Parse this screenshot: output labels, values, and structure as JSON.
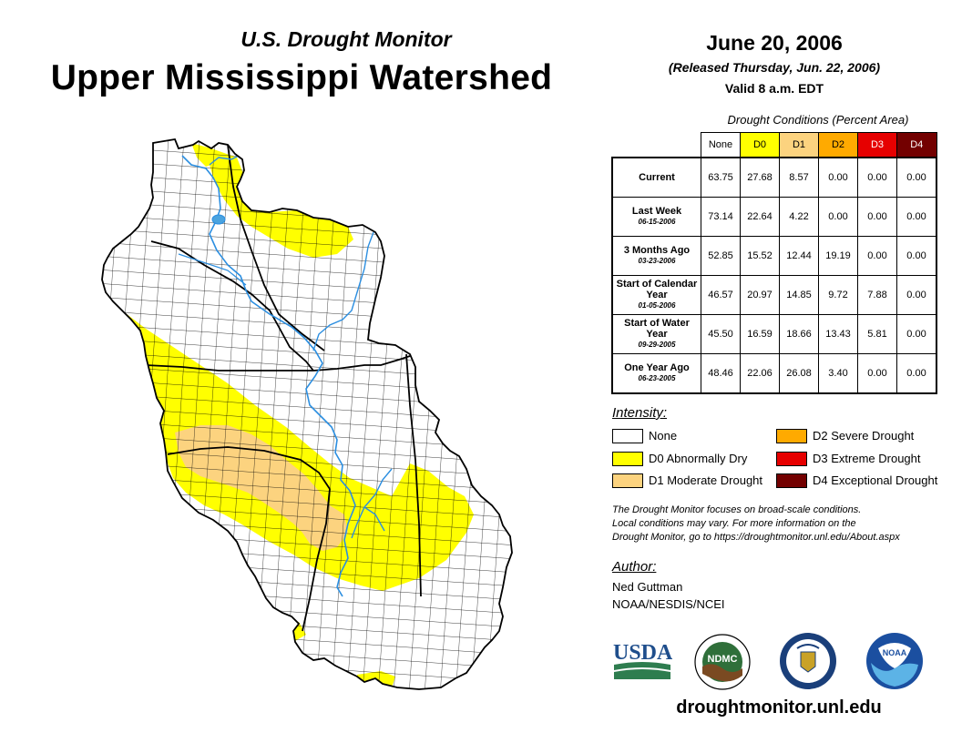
{
  "header": {
    "brand": "U.S. Drought Monitor",
    "title": "Upper Mississippi Watershed",
    "date": "June 20, 2006",
    "released": "(Released Thursday, Jun. 22, 2006)",
    "valid": "Valid 8 a.m. EDT"
  },
  "table": {
    "caption": "Drought Conditions (Percent Area)",
    "columns": [
      {
        "label": "None",
        "color": "#ffffff",
        "text_color": "#000000"
      },
      {
        "label": "D0",
        "color": "#ffff00",
        "text_color": "#000000"
      },
      {
        "label": "D1",
        "color": "#fcd37f",
        "text_color": "#000000"
      },
      {
        "label": "D2",
        "color": "#ffaa00",
        "text_color": "#000000"
      },
      {
        "label": "D3",
        "color": "#e60000",
        "text_color": "#ffffff"
      },
      {
        "label": "D4",
        "color": "#730000",
        "text_color": "#ffffff"
      }
    ],
    "rows": [
      {
        "label": "Current",
        "date": "",
        "values": [
          "63.75",
          "27.68",
          "8.57",
          "0.00",
          "0.00",
          "0.00"
        ]
      },
      {
        "label": "Last Week",
        "date": "06-15-2006",
        "values": [
          "73.14",
          "22.64",
          "4.22",
          "0.00",
          "0.00",
          "0.00"
        ]
      },
      {
        "label": "3 Months Ago",
        "date": "03-23-2006",
        "values": [
          "52.85",
          "15.52",
          "12.44",
          "19.19",
          "0.00",
          "0.00"
        ]
      },
      {
        "label": "Start of Calendar Year",
        "date": "01-05-2006",
        "values": [
          "46.57",
          "20.97",
          "14.85",
          "9.72",
          "7.88",
          "0.00"
        ]
      },
      {
        "label": "Start of Water Year",
        "date": "09-29-2005",
        "values": [
          "45.50",
          "16.59",
          "18.66",
          "13.43",
          "5.81",
          "0.00"
        ]
      },
      {
        "label": "One Year Ago",
        "date": "06-23-2005",
        "values": [
          "48.46",
          "22.06",
          "26.08",
          "3.40",
          "0.00",
          "0.00"
        ]
      }
    ]
  },
  "legend": {
    "title": "Intensity:",
    "items": [
      {
        "label": "None",
        "color": "#ffffff"
      },
      {
        "label": "D0 Abnormally Dry",
        "color": "#ffff00"
      },
      {
        "label": "D1 Moderate Drought",
        "color": "#fcd37f"
      },
      {
        "label": "D2 Severe Drought",
        "color": "#ffaa00"
      },
      {
        "label": "D3 Extreme Drought",
        "color": "#e60000"
      },
      {
        "label": "D4 Exceptional Drought",
        "color": "#730000"
      }
    ]
  },
  "note": [
    "The Drought Monitor focuses on broad-scale conditions.",
    "Local conditions may vary. For more information on the",
    "Drought Monitor, go to https://droughtmonitor.unl.edu/About.aspx"
  ],
  "author": {
    "title": "Author:",
    "name": "Ned Guttman",
    "org": "NOAA/NESDIS/NCEI"
  },
  "logos": {
    "usda": "USDA",
    "ndmc": "NDMC",
    "noaa": "NOAA"
  },
  "footer": {
    "url": "droughtmonitor.unl.edu"
  },
  "map": {
    "colors": {
      "none": "#ffffff",
      "d0": "#ffff00",
      "d1": "#fcd37f",
      "water": "#4aa3df",
      "boundary": "#000000"
    }
  }
}
